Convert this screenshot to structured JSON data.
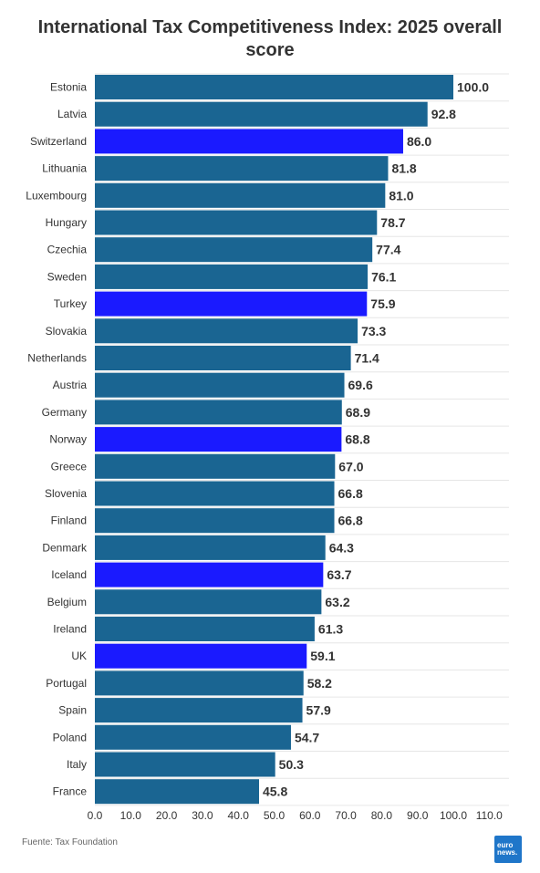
{
  "chart_data": {
    "type": "bar",
    "orientation": "horizontal",
    "title": "International Tax Competitiveness Index: 2025 overall score",
    "categories": [
      "Estonia",
      "Latvia",
      "Switzerland",
      "Lithuania",
      "Luxembourg",
      "Hungary",
      "Czechia",
      "Sweden",
      "Turkey",
      "Slovakia",
      "Netherlands",
      "Austria",
      "Germany",
      "Norway",
      "Greece",
      "Slovenia",
      "Finland",
      "Denmark",
      "Iceland",
      "Belgium",
      "Ireland",
      "UK",
      "Portugal",
      "Spain",
      "Poland",
      "Italy",
      "France"
    ],
    "values": [
      100.0,
      92.8,
      86.0,
      81.8,
      81.0,
      78.7,
      77.4,
      76.1,
      75.9,
      73.3,
      71.4,
      69.6,
      68.9,
      68.8,
      67.0,
      66.8,
      66.8,
      64.3,
      63.7,
      63.2,
      61.3,
      59.1,
      58.2,
      57.9,
      54.7,
      50.3,
      45.8
    ],
    "highlighted": [
      "Switzerland",
      "Turkey",
      "Norway",
      "Iceland",
      "UK"
    ],
    "xlim": [
      0,
      110
    ],
    "xticks": [
      "0.0",
      "10.0",
      "20.0",
      "30.0",
      "40.0",
      "50.0",
      "60.0",
      "70.0",
      "80.0",
      "90.0",
      "100.0",
      "110.0"
    ],
    "grid": true,
    "colors": {
      "default": "#1a6592",
      "highlight": "#1a1aff"
    }
  },
  "source": "Fuente: Tax Foundation",
  "logo": {
    "line1": "euro",
    "line2": "news."
  }
}
